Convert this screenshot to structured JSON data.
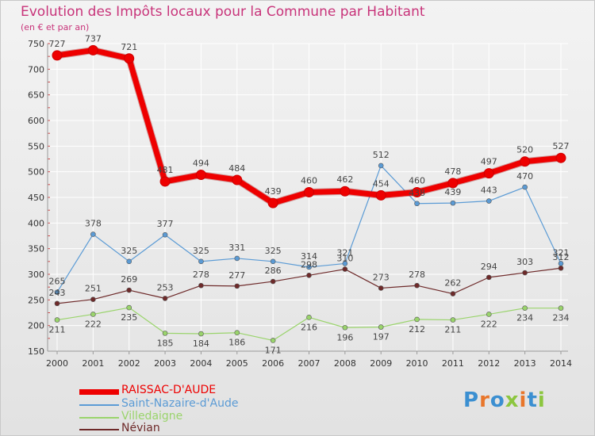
{
  "chart_data": {
    "type": "line",
    "title": "Evolution des Impôts locaux pour la Commune par Habitant",
    "subtitle": "(en € et par an)",
    "x": [
      "2000",
      "2001",
      "2002",
      "2003",
      "2004",
      "2005",
      "2006",
      "2007",
      "2008",
      "2009",
      "2010",
      "2011",
      "2012",
      "2013",
      "2014"
    ],
    "ylim": [
      150,
      750
    ],
    "yticks": [
      150,
      200,
      250,
      300,
      350,
      400,
      450,
      500,
      550,
      600,
      650,
      700,
      750
    ],
    "series": [
      {
        "name": "RAISSAC-D'AUDE",
        "color": "#ee0000",
        "values": [
          727,
          737,
          721,
          481,
          494,
          484,
          439,
          460,
          462,
          454,
          460,
          478,
          497,
          520,
          527
        ]
      },
      {
        "name": "Saint-Nazaire-d'Aude",
        "color": "#5b9bd5",
        "values": [
          265,
          378,
          325,
          377,
          325,
          331,
          325,
          314,
          321,
          512,
          438,
          439,
          443,
          470,
          321
        ]
      },
      {
        "name": "Villedaigne",
        "color": "#9ad46c",
        "values": [
          211,
          222,
          235,
          185,
          184,
          186,
          171,
          216,
          196,
          197,
          212,
          211,
          222,
          234,
          234
        ]
      },
      {
        "name": "Névian",
        "color": "#6e2a2a",
        "values": [
          243,
          251,
          269,
          253,
          278,
          277,
          286,
          298,
          310,
          273,
          278,
          262,
          294,
          303,
          312
        ]
      }
    ]
  },
  "brand": {
    "text": "Proxiti"
  }
}
